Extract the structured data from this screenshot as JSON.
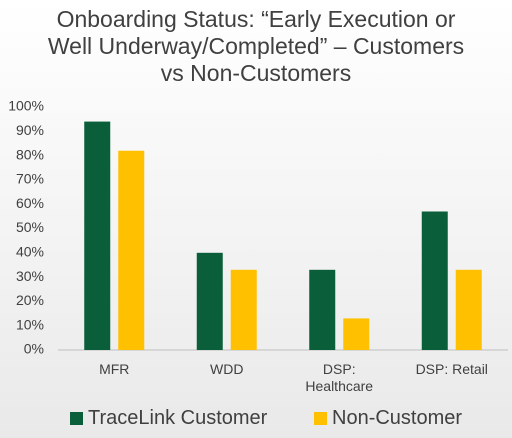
{
  "chart_data": {
    "type": "bar",
    "title": "Onboarding Status: “Early Execution or Well Underway/Completed” – Customers vs Non-Customers",
    "categories": [
      "MFR",
      "WDD",
      "DSP: Healthcare",
      "DSP: Retail"
    ],
    "series": [
      {
        "name": "TraceLink Customer",
        "color": "#0b5e3a",
        "values": [
          94,
          40,
          33,
          57
        ]
      },
      {
        "name": "Non-Customer",
        "color": "#ffc000",
        "values": [
          82,
          33,
          13,
          33
        ]
      }
    ],
    "ylim": [
      0,
      100
    ],
    "yticks": [
      {
        "value": 0,
        "label": "0%"
      },
      {
        "value": 10,
        "label": "10%"
      },
      {
        "value": 20,
        "label": "20%"
      },
      {
        "value": 30,
        "label": "30%"
      },
      {
        "value": 40,
        "label": "40%"
      },
      {
        "value": 50,
        "label": "50%"
      },
      {
        "value": 60,
        "label": "60%"
      },
      {
        "value": 70,
        "label": "70%"
      },
      {
        "value": 80,
        "label": "80%"
      },
      {
        "value": 90,
        "label": "90%"
      },
      {
        "value": 100,
        "label": "100%"
      }
    ],
    "grid": false,
    "legend": "bottom"
  }
}
